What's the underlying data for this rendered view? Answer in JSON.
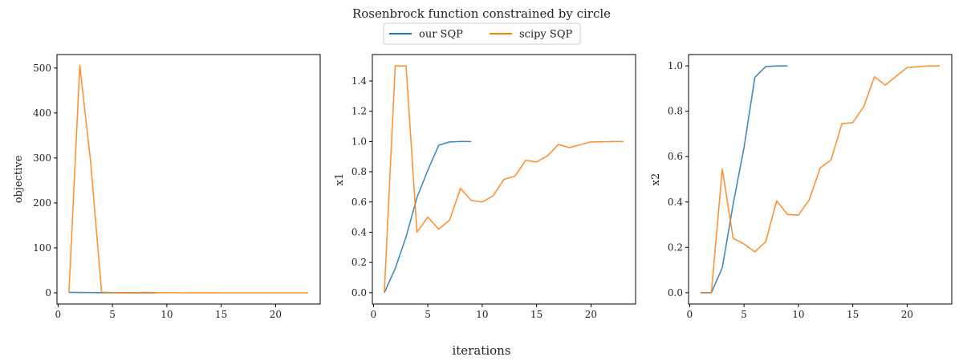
{
  "figure": {
    "title": "Rosenbrock function constrained by circle",
    "xlabel": "iterations"
  },
  "legend": {
    "placement": "top-center",
    "entries": [
      {
        "name": "our SQP",
        "color": "#1f77b4"
      },
      {
        "name": "scipy SQP",
        "color": "#ff7f0e"
      }
    ]
  },
  "chart_data": [
    {
      "type": "line",
      "title": "",
      "xlabel": "",
      "ylabel": "objective",
      "xlim": [
        -0.1,
        24.1
      ],
      "ylim": [
        -25.0,
        530.0
      ],
      "xticks": [
        0,
        5,
        10,
        15,
        20
      ],
      "yticks": [
        0,
        100,
        200,
        300,
        400,
        500
      ],
      "ytick_decimals": 0,
      "grid": false,
      "series": [
        {
          "name": "our SQP",
          "color": "#1f77b4",
          "x": [
            1,
            2,
            3,
            4,
            5,
            6,
            7,
            8,
            9
          ],
          "y": [
            1.0,
            0.8,
            0.5,
            0.3,
            0.2,
            0.1,
            0.05,
            0.0,
            0.0
          ]
        },
        {
          "name": "scipy SQP",
          "color": "#ff7f0e",
          "x": [
            1,
            2,
            3,
            4,
            5,
            6,
            7,
            8,
            9,
            10,
            11,
            12,
            13,
            14,
            15,
            16,
            17,
            18,
            19,
            20,
            21,
            22,
            23
          ],
          "y": [
            1.0,
            506.0,
            290.0,
            1.5,
            0.5,
            0.4,
            0.3,
            0.8,
            0.3,
            0.2,
            0.2,
            0.1,
            0.1,
            0.1,
            0.0,
            0.0,
            0.0,
            0.0,
            0.0,
            0.0,
            0.0,
            0.0,
            0.0
          ]
        }
      ]
    },
    {
      "type": "line",
      "title": "",
      "xlabel": "",
      "ylabel": "x1",
      "xlim": [
        -0.1,
        24.1
      ],
      "ylim": [
        -0.075,
        1.575
      ],
      "xticks": [
        0,
        5,
        10,
        15,
        20
      ],
      "yticks": [
        0.0,
        0.2,
        0.4,
        0.6,
        0.8,
        1.0,
        1.2,
        1.4
      ],
      "ytick_decimals": 1,
      "grid": false,
      "series": [
        {
          "name": "our SQP",
          "color": "#1f77b4",
          "x": [
            1,
            2,
            3,
            4,
            5,
            6,
            7,
            8,
            9
          ],
          "y": [
            0.0,
            0.16,
            0.37,
            0.63,
            0.81,
            0.975,
            0.997,
            1.0,
            1.0
          ]
        },
        {
          "name": "scipy SQP",
          "color": "#ff7f0e",
          "x": [
            1,
            2,
            3,
            4,
            5,
            6,
            7,
            8,
            9,
            10,
            11,
            12,
            13,
            14,
            15,
            16,
            17,
            18,
            19,
            20,
            21,
            22,
            23
          ],
          "y": [
            0.0,
            1.5,
            1.5,
            0.4,
            0.5,
            0.42,
            0.48,
            0.69,
            0.61,
            0.6,
            0.64,
            0.75,
            0.77,
            0.875,
            0.865,
            0.905,
            0.98,
            0.96,
            0.978,
            0.997,
            0.998,
            1.0,
            1.0
          ]
        }
      ]
    },
    {
      "type": "line",
      "title": "",
      "xlabel": "",
      "ylabel": "x2",
      "xlim": [
        -0.1,
        24.1
      ],
      "ylim": [
        -0.05,
        1.05
      ],
      "xticks": [
        0,
        5,
        10,
        15,
        20
      ],
      "yticks": [
        0.0,
        0.2,
        0.4,
        0.6,
        0.8,
        1.0
      ],
      "ytick_decimals": 1,
      "grid": false,
      "series": [
        {
          "name": "our SQP",
          "color": "#1f77b4",
          "x": [
            1,
            2,
            3,
            4,
            5,
            6,
            7,
            8,
            9
          ],
          "y": [
            0.0,
            0.0,
            0.11,
            0.39,
            0.64,
            0.95,
            0.997,
            1.0,
            1.0
          ]
        },
        {
          "name": "scipy SQP",
          "color": "#ff7f0e",
          "x": [
            1,
            2,
            3,
            4,
            5,
            6,
            7,
            8,
            9,
            10,
            11,
            12,
            13,
            14,
            15,
            16,
            17,
            18,
            19,
            20,
            21,
            22,
            23
          ],
          "y": [
            0.0,
            0.0,
            0.545,
            0.24,
            0.215,
            0.18,
            0.225,
            0.405,
            0.345,
            0.342,
            0.41,
            0.55,
            0.585,
            0.745,
            0.75,
            0.82,
            0.952,
            0.915,
            0.955,
            0.993,
            0.996,
            1.0,
            1.0
          ]
        }
      ]
    }
  ]
}
